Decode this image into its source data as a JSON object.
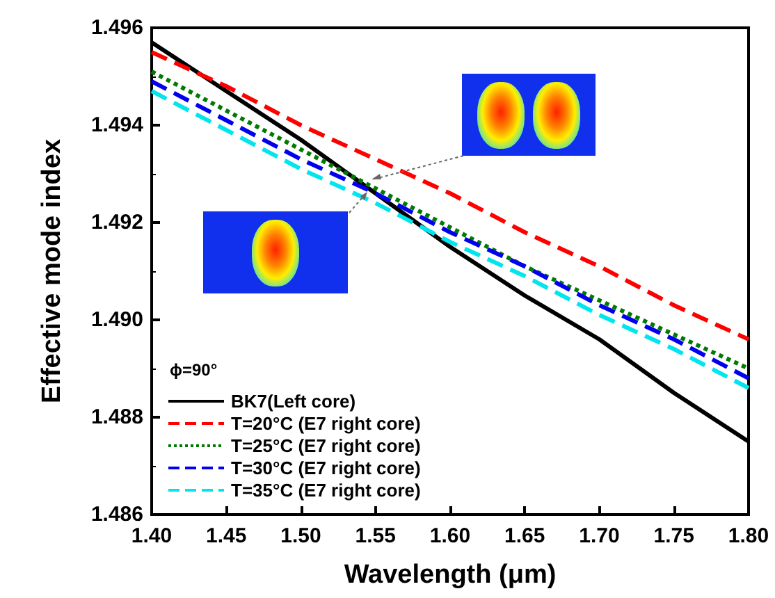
{
  "chart_data": {
    "type": "line",
    "xlabel": "Wavelength (μm)",
    "ylabel": "Effective mode index",
    "legend_title": "ϕ=90°",
    "legend": "bottom left",
    "x": [
      1.4,
      1.45,
      1.5,
      1.55,
      1.6,
      1.65,
      1.7,
      1.75,
      1.8
    ],
    "series": [
      {
        "name": "BK7(Left core)",
        "color": "#000000",
        "line_style": "solid",
        "values": [
          1.4957,
          1.4947,
          1.4937,
          1.4926,
          1.4915,
          1.4905,
          1.4896,
          1.4885,
          1.4875
        ]
      },
      {
        "name": "T=20°C (E7 right core)",
        "color": "#ff0000",
        "line_style": "dashed",
        "values": [
          1.4955,
          1.4948,
          1.494,
          1.4933,
          1.4926,
          1.4918,
          1.4911,
          1.4903,
          1.4896
        ]
      },
      {
        "name": "T=25°C (E7 right core)",
        "color": "#007a00",
        "line_style": "dotted",
        "values": [
          1.4951,
          1.4943,
          1.4935,
          1.4927,
          1.4919,
          1.4911,
          1.4904,
          1.4897,
          1.489
        ]
      },
      {
        "name": "T=30°C (E7 right core)",
        "color": "#0000ee",
        "line_style": "dashed",
        "values": [
          1.4949,
          1.4941,
          1.4933,
          1.4926,
          1.4918,
          1.4911,
          1.4903,
          1.4896,
          1.4888
        ]
      },
      {
        "name": "T=35°C (E7 right core)",
        "color": "#00e5ee",
        "line_style": "dashed",
        "values": [
          1.4947,
          1.4939,
          1.4931,
          1.4924,
          1.4916,
          1.4909,
          1.4901,
          1.4894,
          1.4886
        ]
      }
    ],
    "xlim": [
      1.4,
      1.8
    ],
    "xticks": [
      {
        "value": 1.4,
        "label": "1.40"
      },
      {
        "value": 1.45,
        "label": "1.45"
      },
      {
        "value": 1.5,
        "label": "1.50"
      },
      {
        "value": 1.55,
        "label": "1.55"
      },
      {
        "value": 1.6,
        "label": "1.60"
      },
      {
        "value": 1.65,
        "label": "1.65"
      },
      {
        "value": 1.7,
        "label": "1.70"
      },
      {
        "value": 1.75,
        "label": "1.75"
      },
      {
        "value": 1.8,
        "label": "1.80"
      }
    ],
    "ylim": [
      1.486,
      1.496
    ],
    "yticks": [
      1.486,
      1.488,
      {
        "value": 1.49,
        "label": "1.490"
      },
      1.492,
      1.494,
      1.496
    ],
    "grid": false,
    "marker": "none"
  }
}
